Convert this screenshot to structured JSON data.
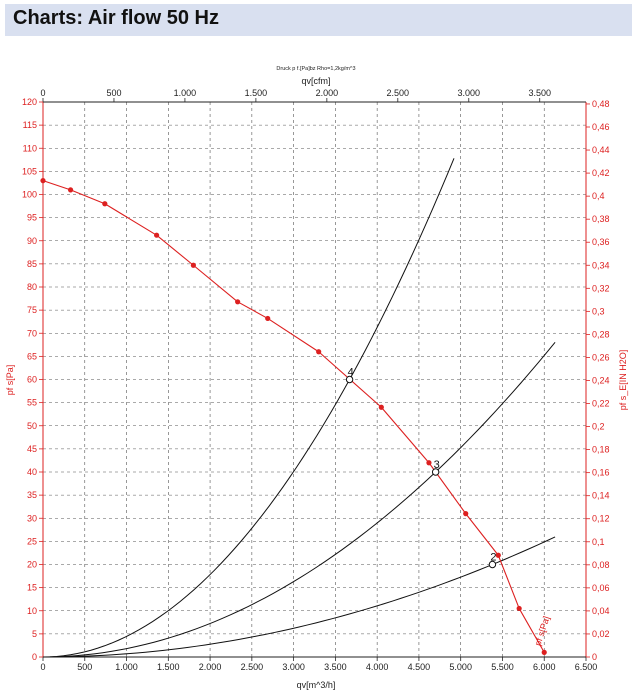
{
  "header": {
    "title": "Charts: Air flow 50 Hz"
  },
  "chart_data": {
    "type": "line",
    "subtitle": "Druck p f.[Pa]bz Rho=1,2kg/m^3",
    "x_top_label": "qv[cfm]",
    "xlabel": "qv[m^3/h]",
    "ylabel_left": "pf s[Pa]",
    "ylabel_right": "pf s_E[IN H2O]",
    "xlim": [
      0,
      6500
    ],
    "ylim": [
      0,
      120
    ],
    "x_top_lim": [
      0,
      3826
    ],
    "y_right_lim": [
      0,
      0.4817
    ],
    "x_ticks": [
      "0",
      "500",
      "1.000",
      "1.500",
      "2.000",
      "2.500",
      "3.000",
      "3.500",
      "4.000",
      "4.500",
      "5.000",
      "5.500",
      "6.000",
      "6.500"
    ],
    "x_top_ticks": [
      "0",
      "500",
      "1.000",
      "1.500",
      "2.000",
      "2.500",
      "3.000",
      "3.500"
    ],
    "y_ticks": [
      "0",
      "5",
      "10",
      "15",
      "20",
      "25",
      "30",
      "35",
      "40",
      "45",
      "50",
      "55",
      "60",
      "65",
      "70",
      "75",
      "80",
      "85",
      "90",
      "95",
      "100",
      "105",
      "110",
      "115",
      "120"
    ],
    "y_right_ticks": [
      "0",
      "0,02",
      "0,04",
      "0,06",
      "0,08",
      "0,1",
      "0,12",
      "0,14",
      "0,16",
      "0,18",
      "0,2",
      "0,22",
      "0,24",
      "0,26",
      "0,28",
      "0,3",
      "0,32",
      "0,34",
      "0,36",
      "0,38",
      "0,4",
      "0,42",
      "0,44",
      "0,46",
      "0,48"
    ],
    "grid": true,
    "fan_curve": {
      "name": "pf s[Pa]",
      "color": "#dd2020",
      "x": [
        0,
        330,
        740,
        1360,
        1800,
        2330,
        2690,
        3300,
        4050,
        4620,
        5060,
        5450,
        5700,
        6000
      ],
      "y": [
        103,
        101,
        98,
        91.2,
        84.7,
        76.8,
        73.2,
        66,
        54,
        42,
        31,
        22,
        10.5,
        1
      ]
    },
    "system_curves": [
      {
        "label": "4",
        "op_x": 3670,
        "op_y": 60,
        "end_x": 4920,
        "color": "#111111"
      },
      {
        "label": "3",
        "op_x": 4700,
        "op_y": 40,
        "end_x": 6130,
        "color": "#111111"
      },
      {
        "label": "2",
        "op_x": 5380,
        "op_y": 20,
        "end_x": 6130,
        "color": "#111111"
      }
    ],
    "colors": {
      "axis_left": "#dd2020",
      "axis_bottom": "#222222",
      "grid": "#555555"
    }
  }
}
